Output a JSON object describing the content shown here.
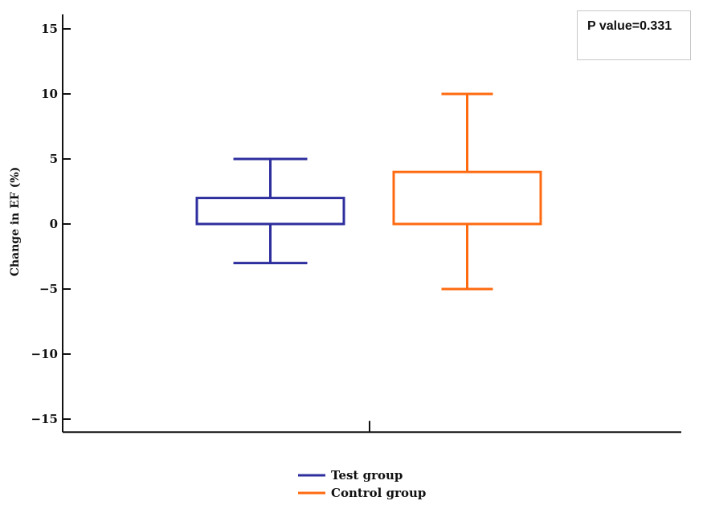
{
  "chart_data": {
    "type": "box",
    "ylabel": "Change in EF (%)",
    "ylim": [
      -16,
      15.5
    ],
    "yticks": [
      15,
      10,
      5,
      0,
      -5,
      -10,
      -15
    ],
    "ytick_labels": [
      "15",
      "10",
      "5",
      "0",
      "−5",
      "−10",
      "−15"
    ],
    "series": [
      {
        "name": "Test group",
        "color": "#2e2e9e",
        "whisker_low": -3,
        "q1": 0,
        "q3": 2,
        "whisker_high": 5
      },
      {
        "name": "Control group",
        "color": "#ff6a10",
        "whisker_low": -5,
        "q1": 0,
        "q3": 4,
        "whisker_high": 10
      }
    ],
    "annotation": "P value=0.331",
    "legend_position": "bottom"
  }
}
